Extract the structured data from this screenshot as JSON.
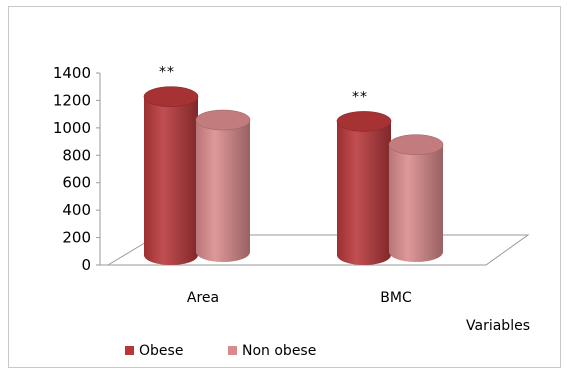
{
  "chart_data": {
    "type": "bar",
    "categories": [
      "Area",
      "BMC"
    ],
    "series": [
      {
        "name": "Obese",
        "values": [
          1300,
          1120
        ],
        "color": "#b8373a"
      },
      {
        "name": "Non obese",
        "values": [
          1130,
          950
        ],
        "color": "#d98a8c"
      }
    ],
    "annotations": [
      {
        "category": "Area",
        "series": "Obese",
        "text": "**"
      },
      {
        "category": "BMC",
        "series": "Obese",
        "text": "**"
      }
    ],
    "xlabel": "Variables",
    "ylabel": "",
    "ylim": [
      0,
      1400
    ],
    "yticks": [
      0,
      200,
      400,
      600,
      800,
      1000,
      1200,
      1400
    ],
    "grid": false,
    "legend_position": "bottom-left",
    "style": "3d-cylinder"
  }
}
